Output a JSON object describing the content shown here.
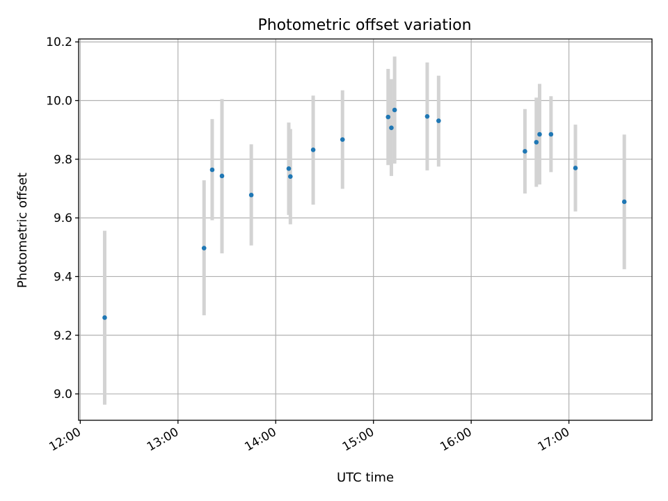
{
  "chart_data": {
    "type": "scatter",
    "title": "Photometric offset variation",
    "xlabel": "UTC time",
    "ylabel": "Photometric offset",
    "x_range": [
      "11:59",
      "17:51"
    ],
    "ylim": [
      8.91,
      10.21
    ],
    "x_ticks": [
      "12:00",
      "13:00",
      "14:00",
      "15:00",
      "16:00",
      "17:00"
    ],
    "y_ticks": [
      9.0,
      9.2,
      9.4,
      9.6,
      9.8,
      10.0,
      10.2
    ],
    "y_tick_labels": [
      "9.0",
      "9.2",
      "9.4",
      "9.6",
      "9.8",
      "10.0",
      "10.2"
    ],
    "grid": true,
    "point_color": "#1f77b4",
    "errorbar_color": "#d3d3d3",
    "points": [
      {
        "x": "12:15",
        "y": 9.26,
        "ylo": 8.963,
        "yhi": 9.556
      },
      {
        "x": "13:16",
        "y": 9.497,
        "ylo": 9.268,
        "yhi": 9.728
      },
      {
        "x": "13:21",
        "y": 9.764,
        "ylo": 9.592,
        "yhi": 9.937
      },
      {
        "x": "13:27",
        "y": 9.743,
        "ylo": 9.479,
        "yhi": 10.005
      },
      {
        "x": "13:45",
        "y": 9.678,
        "ylo": 9.506,
        "yhi": 9.851
      },
      {
        "x": "14:08",
        "y": 9.768,
        "ylo": 9.61,
        "yhi": 9.925
      },
      {
        "x": "14:09",
        "y": 9.741,
        "ylo": 9.578,
        "yhi": 9.903
      },
      {
        "x": "14:23",
        "y": 9.832,
        "ylo": 9.645,
        "yhi": 10.017
      },
      {
        "x": "14:41",
        "y": 9.867,
        "ylo": 9.699,
        "yhi": 10.035
      },
      {
        "x": "15:09",
        "y": 9.944,
        "ylo": 9.78,
        "yhi": 10.108
      },
      {
        "x": "15:11",
        "y": 9.907,
        "ylo": 9.743,
        "yhi": 10.073
      },
      {
        "x": "15:13",
        "y": 9.968,
        "ylo": 9.785,
        "yhi": 10.15
      },
      {
        "x": "15:33",
        "y": 9.946,
        "ylo": 9.762,
        "yhi": 10.13
      },
      {
        "x": "15:40",
        "y": 9.931,
        "ylo": 9.775,
        "yhi": 10.085
      },
      {
        "x": "16:33",
        "y": 9.827,
        "ylo": 9.683,
        "yhi": 9.971
      },
      {
        "x": "16:40",
        "y": 9.858,
        "ylo": 9.706,
        "yhi": 10.01
      },
      {
        "x": "16:42",
        "y": 9.885,
        "ylo": 9.714,
        "yhi": 10.057
      },
      {
        "x": "16:49",
        "y": 9.885,
        "ylo": 9.756,
        "yhi": 10.015
      },
      {
        "x": "17:04",
        "y": 9.77,
        "ylo": 9.622,
        "yhi": 9.918
      },
      {
        "x": "17:34",
        "y": 9.655,
        "ylo": 9.425,
        "yhi": 9.884
      }
    ]
  }
}
